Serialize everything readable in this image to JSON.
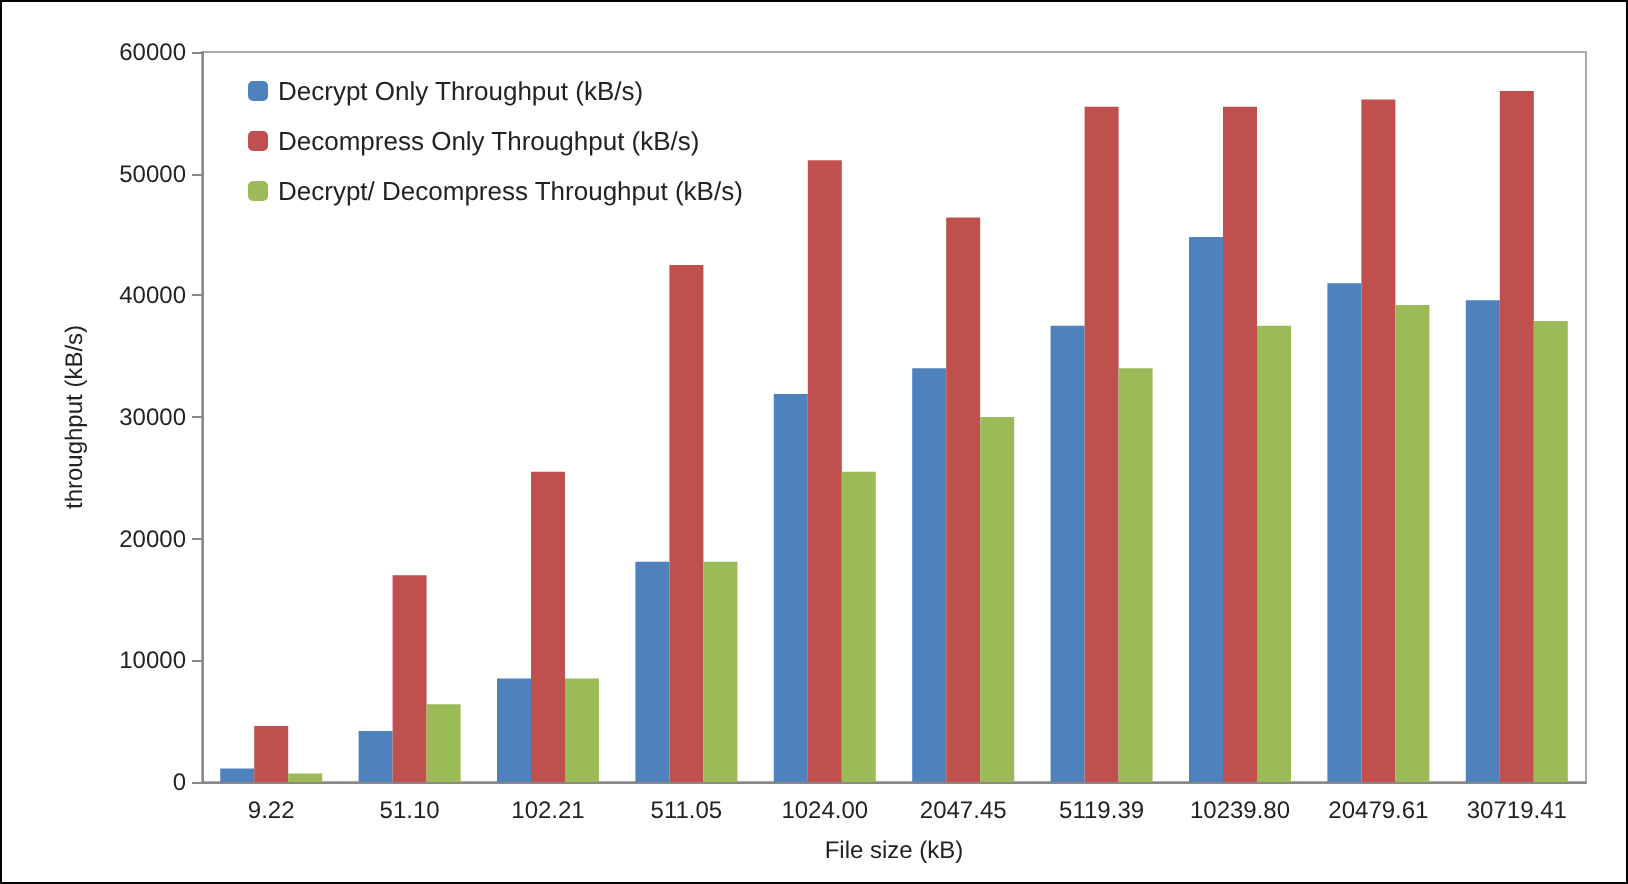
{
  "chart_data": {
    "type": "bar",
    "xlabel": "File size (kB)",
    "ylabel": "throughput (kB/s)",
    "categories": [
      "9.22",
      "51.10",
      "102.21",
      "511.05",
      "1024.00",
      "2047.45",
      "5119.39",
      "10239.80",
      "20479.61",
      "30719.41"
    ],
    "series": [
      {
        "name": "Decrypt Only Throughput (kB/s)",
        "color": "#4f81bd",
        "values": [
          1100,
          4200,
          8500,
          18100,
          31900,
          34000,
          37500,
          44800,
          41000,
          39600
        ]
      },
      {
        "name": "Decompress Only Throughput (kB/s)",
        "color": "#c0504d",
        "values": [
          4600,
          17000,
          25500,
          42500,
          51100,
          46400,
          55500,
          55500,
          56100,
          56800
        ]
      },
      {
        "name": "Decrypt/ Decompress Throughput (kB/s)",
        "color": "#9bbb59",
        "values": [
          700,
          6400,
          8500,
          18100,
          25500,
          30000,
          34000,
          37500,
          39200,
          37900
        ]
      }
    ],
    "ylim": [
      0,
      60000
    ],
    "yticks": [
      0,
      10000,
      20000,
      30000,
      40000,
      50000,
      60000
    ],
    "grid": false,
    "legend": "top left"
  }
}
